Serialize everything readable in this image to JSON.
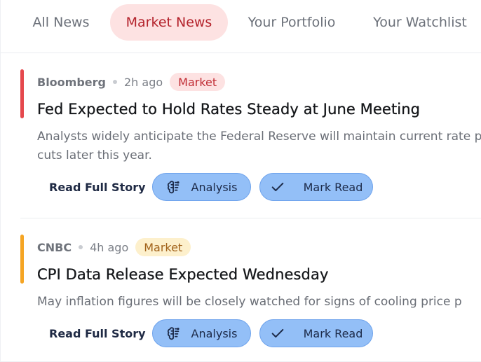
{
  "tabs": {
    "all": "All News",
    "market": "Market News",
    "portfolio": "Your Portfolio",
    "watchlist": "Your Watchlist",
    "active": "market"
  },
  "articles": [
    {
      "source": "Bloomberg",
      "time": "2h ago",
      "tag": "Market",
      "tag_color": "#c02b33",
      "accent_color": "#e5484d",
      "headline": "Fed Expected to Hold Rates Steady at June Meeting",
      "summary": "Analysts widely anticipate the Federal Reserve will maintain current rate potential cuts later this year.",
      "read_label": "Read Full Story",
      "analysis_label": "Analysis",
      "mark_read_label": "Mark Read"
    },
    {
      "source": "CNBC",
      "time": "4h ago",
      "tag": "Market",
      "tag_color": "#a1621a",
      "accent_color": "#f5a524",
      "headline": "CPI Data Release Expected Wednesday",
      "summary": "May inflation figures will be closely watched for signs of cooling price p",
      "read_label": "Read Full Story",
      "analysis_label": "Analysis",
      "mark_read_label": "Mark Read"
    }
  ],
  "icons": {
    "analysis": "brain-icon",
    "mark_read": "check-icon"
  },
  "colors": {
    "active_tab_bg": "#fde2e2",
    "active_tab_text": "#b4232c",
    "button_bg": "#93bff7"
  }
}
